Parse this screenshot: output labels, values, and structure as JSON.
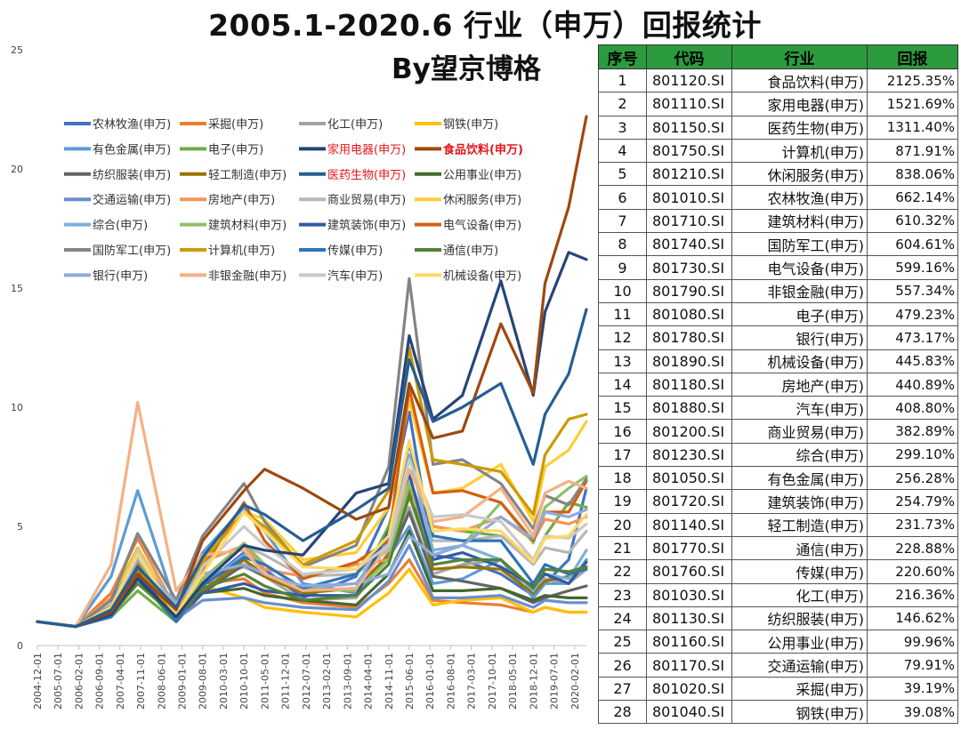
{
  "title": "2005.1-2020.6 行业（申万）回报统计",
  "byline": "By望京博格",
  "colors": {
    "table_header_bg": "#2c9a3e",
    "highlight_legend": "#e8141c"
  },
  "table": {
    "headers": [
      "序号",
      "代码",
      "行业",
      "回报"
    ],
    "rows": [
      {
        "rank": "1",
        "code": "801120.SI",
        "name": "食品饮料(申万)",
        "ret": "2125.35%"
      },
      {
        "rank": "2",
        "code": "801110.SI",
        "name": "家用电器(申万)",
        "ret": "1521.69%"
      },
      {
        "rank": "3",
        "code": "801150.SI",
        "name": "医药生物(申万)",
        "ret": "1311.40%"
      },
      {
        "rank": "4",
        "code": "801750.SI",
        "name": "计算机(申万)",
        "ret": "871.91%"
      },
      {
        "rank": "5",
        "code": "801210.SI",
        "name": "休闲服务(申万)",
        "ret": "838.06%"
      },
      {
        "rank": "6",
        "code": "801010.SI",
        "name": "农林牧渔(申万)",
        "ret": "662.14%"
      },
      {
        "rank": "7",
        "code": "801710.SI",
        "name": "建筑材料(申万)",
        "ret": "610.32%"
      },
      {
        "rank": "8",
        "code": "801740.SI",
        "name": "国防军工(申万)",
        "ret": "604.61%"
      },
      {
        "rank": "9",
        "code": "801730.SI",
        "name": "电气设备(申万)",
        "ret": "599.16%"
      },
      {
        "rank": "10",
        "code": "801790.SI",
        "name": "非银金融(申万)",
        "ret": "557.34%"
      },
      {
        "rank": "11",
        "code": "801080.SI",
        "name": "电子(申万)",
        "ret": "479.23%"
      },
      {
        "rank": "12",
        "code": "801780.SI",
        "name": "银行(申万)",
        "ret": "473.17%"
      },
      {
        "rank": "13",
        "code": "801890.SI",
        "name": "机械设备(申万)",
        "ret": "445.83%"
      },
      {
        "rank": "14",
        "code": "801180.SI",
        "name": "房地产(申万)",
        "ret": "440.89%"
      },
      {
        "rank": "15",
        "code": "801880.SI",
        "name": "汽车(申万)",
        "ret": "408.80%"
      },
      {
        "rank": "16",
        "code": "801200.SI",
        "name": "商业贸易(申万)",
        "ret": "382.89%"
      },
      {
        "rank": "17",
        "code": "801230.SI",
        "name": "综合(申万)",
        "ret": "299.10%"
      },
      {
        "rank": "18",
        "code": "801050.SI",
        "name": "有色金属(申万)",
        "ret": "256.28%"
      },
      {
        "rank": "19",
        "code": "801720.SI",
        "name": "建筑装饰(申万)",
        "ret": "254.79%"
      },
      {
        "rank": "20",
        "code": "801140.SI",
        "name": "轻工制造(申万)",
        "ret": "231.73%"
      },
      {
        "rank": "21",
        "code": "801770.SI",
        "name": "通信(申万)",
        "ret": "228.88%"
      },
      {
        "rank": "22",
        "code": "801760.SI",
        "name": "传媒(申万)",
        "ret": "220.60%"
      },
      {
        "rank": "23",
        "code": "801030.SI",
        "name": "化工(申万)",
        "ret": "216.36%"
      },
      {
        "rank": "24",
        "code": "801130.SI",
        "name": "纺织服装(申万)",
        "ret": "146.62%"
      },
      {
        "rank": "25",
        "code": "801160.SI",
        "name": "公用事业(申万)",
        "ret": "99.96%"
      },
      {
        "rank": "26",
        "code": "801170.SI",
        "name": "交通运输(申万)",
        "ret": "79.91%"
      },
      {
        "rank": "27",
        "code": "801020.SI",
        "name": "采掘(申万)",
        "ret": "39.19%"
      },
      {
        "rank": "28",
        "code": "801040.SI",
        "name": "钢铁(申万)",
        "ret": "39.08%"
      }
    ]
  },
  "chart_data": {
    "type": "line",
    "title": "",
    "xlabel": "",
    "ylabel": "",
    "ylim": [
      0,
      25
    ],
    "yticks": [
      0,
      5,
      10,
      15,
      20,
      25
    ],
    "grid": false,
    "legend_position": "top-left",
    "x_tick_labels": [
      "2004-12-01",
      "2005-07-01",
      "2006-02-01",
      "2006-09-01",
      "2007-04-01",
      "2007-11-01",
      "2008-06-01",
      "2009-01-01",
      "2009-08-01",
      "2010-03-01",
      "2010-10-01",
      "2011-05-01",
      "2011-12-01",
      "2012-07-01",
      "2013-02-01",
      "2013-09-01",
      "2014-04-01",
      "2014-11-01",
      "2015-06-01",
      "2016-01-01",
      "2016-08-01",
      "2017-03-01",
      "2017-10-01",
      "2018-05-01",
      "2018-12-01",
      "2019-07-01",
      "2020-02-01"
    ],
    "key_dates": [
      "2004-12-01",
      "2006-01-01",
      "2007-01-01",
      "2007-10-01",
      "2008-11-01",
      "2009-08-01",
      "2010-10-01",
      "2011-05-01",
      "2012-06-01",
      "2013-12-01",
      "2014-11-01",
      "2015-06-01",
      "2016-02-01",
      "2016-12-01",
      "2018-01-01",
      "2018-12-01",
      "2019-04-01",
      "2019-12-01",
      "2020-06-01"
    ],
    "series": [
      {
        "name": "农林牧渔(申万)",
        "color": "#4472c4",
        "values": [
          1.0,
          0.8,
          1.9,
          3.7,
          1.3,
          2.5,
          3.9,
          3.2,
          2.0,
          2.9,
          5.8,
          9.8,
          3.8,
          3.6,
          3.0,
          2.1,
          2.6,
          3.6,
          6.6
        ]
      },
      {
        "name": "采掘(申万)",
        "color": "#ed7d31",
        "values": [
          1.0,
          0.8,
          2.2,
          4.5,
          1.5,
          2.6,
          2.8,
          2.2,
          1.8,
          1.6,
          2.6,
          3.6,
          1.9,
          1.8,
          1.7,
          1.4,
          1.6,
          1.4,
          1.4
        ]
      },
      {
        "name": "化工(申万)",
        "color": "#a5a5a5",
        "values": [
          1.0,
          0.8,
          1.7,
          3.5,
          1.3,
          2.7,
          3.3,
          2.9,
          1.9,
          2.0,
          3.9,
          5.8,
          3.0,
          3.4,
          3.6,
          2.3,
          2.8,
          2.6,
          3.2
        ]
      },
      {
        "name": "钢铁(申万)",
        "color": "#ffc000",
        "values": [
          1.0,
          0.8,
          2.0,
          4.1,
          1.4,
          2.5,
          2.0,
          1.6,
          1.4,
          1.2,
          2.2,
          3.2,
          1.7,
          1.9,
          2.0,
          1.4,
          1.6,
          1.4,
          1.4
        ]
      },
      {
        "name": "有色金属(申万)",
        "color": "#5b9bd5",
        "values": [
          1.0,
          0.8,
          2.9,
          6.5,
          1.6,
          3.9,
          5.8,
          4.8,
          2.6,
          2.2,
          3.7,
          5.0,
          2.6,
          2.8,
          3.6,
          2.0,
          2.6,
          2.6,
          3.6
        ]
      },
      {
        "name": "电子(申万)",
        "color": "#70ad47",
        "values": [
          1.0,
          0.8,
          1.2,
          2.3,
          1.0,
          2.2,
          3.6,
          3.0,
          2.3,
          2.4,
          5.0,
          8.0,
          5.0,
          4.8,
          4.6,
          3.6,
          4.6,
          6.0,
          5.8
        ]
      },
      {
        "name": "家用电器(申万)",
        "color": "#264478",
        "values": [
          1.0,
          0.8,
          1.3,
          2.8,
          1.2,
          2.6,
          4.2,
          4.0,
          3.8,
          6.4,
          6.8,
          13.0,
          9.5,
          10.5,
          15.3,
          10.5,
          14.0,
          16.5,
          16.2
        ]
      },
      {
        "name": "食品饮料(申万)",
        "color": "#9e480e",
        "values": [
          1.0,
          0.8,
          1.4,
          3.0,
          1.5,
          4.4,
          6.5,
          7.4,
          6.6,
          5.3,
          5.8,
          11.0,
          8.7,
          9.0,
          13.5,
          10.6,
          15.2,
          18.4,
          22.2
        ]
      },
      {
        "name": "纺织服装(申万)",
        "color": "#636363",
        "values": [
          1.0,
          0.8,
          1.4,
          2.9,
          1.0,
          2.2,
          3.4,
          2.9,
          2.3,
          2.4,
          3.6,
          5.6,
          2.9,
          2.7,
          2.4,
          1.8,
          2.0,
          2.3,
          2.5
        ]
      },
      {
        "name": "轻工制造(申万)",
        "color": "#997300",
        "values": [
          1.0,
          0.8,
          1.5,
          3.2,
          1.1,
          2.3,
          3.6,
          2.9,
          2.2,
          2.4,
          3.8,
          6.6,
          3.2,
          3.3,
          3.2,
          2.2,
          2.7,
          2.9,
          3.3
        ]
      },
      {
        "name": "医药生物(申万)",
        "color": "#255e91",
        "values": [
          1.0,
          0.8,
          1.5,
          3.3,
          1.6,
          3.7,
          5.9,
          5.5,
          4.4,
          5.7,
          6.6,
          12.0,
          9.4,
          10.0,
          11.0,
          7.6,
          9.7,
          11.4,
          14.1
        ]
      },
      {
        "name": "公用事业(申万)",
        "color": "#43682b",
        "values": [
          1.0,
          0.8,
          1.4,
          3.3,
          1.3,
          2.2,
          2.4,
          2.1,
          1.9,
          1.7,
          3.0,
          4.8,
          2.3,
          2.3,
          2.4,
          1.9,
          2.1,
          2.0,
          2.0
        ]
      },
      {
        "name": "交通运输(申万)",
        "color": "#698ed0",
        "values": [
          1.0,
          0.8,
          1.5,
          3.3,
          1.1,
          1.9,
          2.0,
          1.8,
          1.6,
          1.5,
          2.7,
          4.2,
          2.0,
          2.0,
          2.1,
          1.6,
          1.9,
          1.8,
          1.8
        ]
      },
      {
        "name": "房地产(申万)",
        "color": "#f1975a",
        "values": [
          1.0,
          0.8,
          2.0,
          4.7,
          1.3,
          3.5,
          4.2,
          3.2,
          2.9,
          3.4,
          3.6,
          6.2,
          5.0,
          4.8,
          5.4,
          4.4,
          5.3,
          5.1,
          5.4
        ]
      },
      {
        "name": "商业贸易(申万)",
        "color": "#b7b7b7",
        "values": [
          1.0,
          0.8,
          1.5,
          3.5,
          1.2,
          2.7,
          4.2,
          3.8,
          2.9,
          3.0,
          4.0,
          7.0,
          4.4,
          4.4,
          4.6,
          3.4,
          4.1,
          3.9,
          4.8
        ]
      },
      {
        "name": "休闲服务(申万)",
        "color": "#ffcd33",
        "values": [
          1.0,
          0.8,
          1.6,
          3.9,
          1.6,
          3.6,
          5.6,
          5.3,
          3.6,
          3.9,
          5.8,
          10.3,
          6.4,
          6.6,
          7.6,
          5.2,
          7.5,
          8.2,
          9.4
        ]
      },
      {
        "name": "综合(申万)",
        "color": "#7cafdd",
        "values": [
          1.0,
          0.8,
          1.4,
          2.9,
          1.1,
          2.5,
          3.8,
          3.4,
          2.4,
          2.6,
          4.4,
          8.0,
          4.0,
          4.2,
          3.6,
          2.3,
          3.0,
          2.8,
          4.0
        ]
      },
      {
        "name": "建筑材料(申万)",
        "color": "#8cc168",
        "values": [
          1.0,
          0.8,
          1.5,
          3.5,
          1.3,
          2.8,
          4.3,
          3.4,
          2.4,
          2.3,
          3.6,
          6.8,
          3.8,
          4.2,
          6.0,
          4.3,
          5.8,
          6.6,
          7.1
        ]
      },
      {
        "name": "建筑装饰(申万)",
        "color": "#335aa1",
        "values": [
          1.0,
          0.8,
          1.3,
          2.9,
          1.3,
          2.2,
          2.6,
          2.3,
          2.1,
          2.1,
          4.8,
          7.2,
          3.6,
          3.9,
          3.3,
          2.5,
          3.0,
          2.6,
          3.5
        ]
      },
      {
        "name": "电气设备(申万)",
        "color": "#d26012",
        "values": [
          1.0,
          0.8,
          1.6,
          3.4,
          1.1,
          3.2,
          6.0,
          4.4,
          2.8,
          3.5,
          4.4,
          10.8,
          6.4,
          6.5,
          6.0,
          4.4,
          5.6,
          5.6,
          6.9
        ]
      },
      {
        "name": "国防军工(申万)",
        "color": "#848484",
        "values": [
          1.0,
          0.8,
          1.9,
          4.7,
          1.9,
          4.6,
          6.8,
          5.2,
          3.3,
          4.2,
          7.5,
          15.4,
          7.6,
          7.8,
          6.8,
          4.9,
          6.3,
          5.9,
          7.0
        ]
      },
      {
        "name": "计算机(申万)",
        "color": "#cc9a00",
        "values": [
          1.0,
          0.8,
          1.5,
          3.3,
          1.2,
          3.5,
          5.6,
          5.0,
          3.4,
          4.4,
          6.5,
          12.5,
          7.8,
          7.6,
          7.3,
          5.5,
          8.0,
          9.5,
          9.7
        ]
      },
      {
        "name": "传媒(申万)",
        "color": "#2e75b6",
        "values": [
          1.0,
          0.8,
          1.2,
          2.8,
          1.0,
          2.5,
          3.7,
          3.4,
          2.4,
          3.0,
          4.6,
          8.5,
          4.6,
          4.4,
          4.4,
          2.6,
          3.4,
          3.0,
          3.2
        ]
      },
      {
        "name": "通信(申万)",
        "color": "#548235",
        "values": [
          1.0,
          0.8,
          1.3,
          2.6,
          1.2,
          2.4,
          3.0,
          2.5,
          1.9,
          2.1,
          3.4,
          6.3,
          3.4,
          3.6,
          3.6,
          2.4,
          3.2,
          3.1,
          3.3
        ]
      },
      {
        "name": "银行(申万)",
        "color": "#8faadc",
        "values": [
          1.0,
          0.8,
          1.5,
          3.6,
          1.8,
          3.0,
          3.4,
          3.0,
          2.5,
          2.6,
          3.0,
          4.6,
          3.8,
          4.2,
          5.4,
          4.5,
          5.6,
          5.4,
          5.7
        ]
      },
      {
        "name": "非银金融(申万)",
        "color": "#f4b183",
        "values": [
          1.0,
          0.8,
          3.4,
          10.2,
          2.3,
          3.8,
          4.0,
          3.0,
          2.3,
          2.4,
          4.2,
          7.4,
          5.2,
          5.4,
          6.6,
          4.6,
          6.4,
          6.9,
          6.6
        ]
      },
      {
        "name": "汽车(申万)",
        "color": "#c9c9c9",
        "values": [
          1.0,
          0.8,
          1.6,
          4.0,
          1.2,
          3.3,
          5.0,
          4.2,
          3.0,
          3.2,
          4.2,
          7.8,
          5.4,
          5.5,
          5.2,
          3.6,
          4.6,
          4.5,
          5.1
        ]
      },
      {
        "name": "机械设备(申万)",
        "color": "#ffd966",
        "values": [
          1.0,
          0.8,
          1.6,
          3.8,
          1.3,
          3.0,
          5.6,
          4.8,
          3.3,
          3.2,
          4.6,
          8.6,
          4.8,
          4.9,
          4.8,
          3.5,
          4.5,
          4.6,
          5.5
        ]
      }
    ],
    "highlight_series": [
      "家用电器(申万)",
      "食品饮料(申万)",
      "医药生物(申万)"
    ]
  }
}
